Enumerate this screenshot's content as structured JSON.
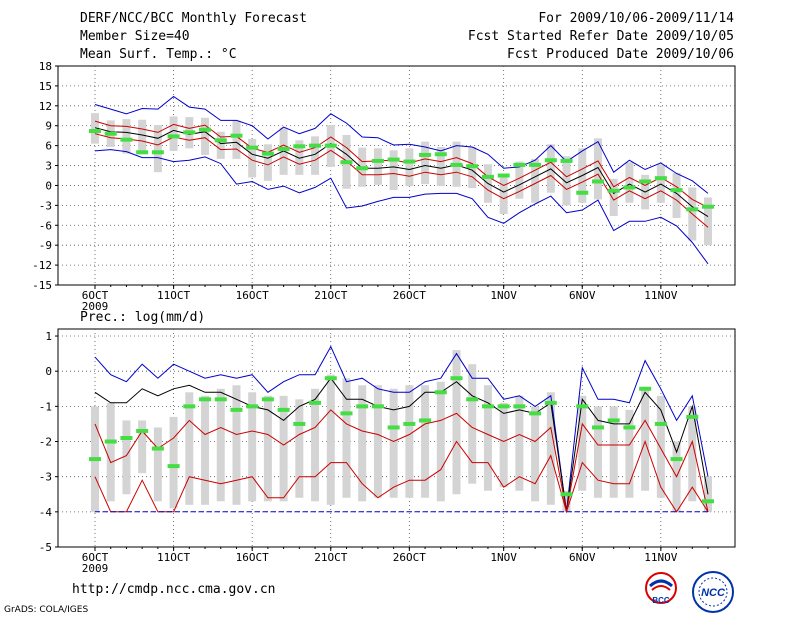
{
  "header": {
    "title": "DERF/NCC/BCC Monthly Forecast",
    "member_size": "Member Size=40",
    "variable": "Mean Surf. Temp.: °C",
    "period": "For 2009/10/06-2009/11/14",
    "fcst_started": "Fcst Started Refer Date 2009/10/05",
    "fcst_produced": "Fcst Produced Date 2009/10/06"
  },
  "footer": {
    "url": "http://cmdp.ncc.cma.gov.cn",
    "grads": "GrADS: COLA/IGES",
    "logo_bcc": "BCC",
    "logo_ncc": "NCC"
  },
  "colors": {
    "max": "#0000cc",
    "mean": "#000000",
    "spread": "#cc0000",
    "box": "#d4d4d4",
    "obs": "#44dd44"
  },
  "chart_data": [
    {
      "type": "line",
      "title": "Mean Surf. Temp.: °C",
      "x": [
        1,
        2,
        3,
        4,
        5,
        6,
        7,
        8,
        9,
        10,
        11,
        12,
        13,
        14,
        15,
        16,
        17,
        18,
        19,
        20,
        21,
        22,
        23,
        24,
        25,
        26,
        27,
        28,
        29,
        30,
        31,
        32,
        33,
        34,
        35,
        36,
        37,
        38,
        39,
        40
      ],
      "xtick_labels": [
        "6OCT",
        "11OCT",
        "16OCT",
        "21OCT",
        "26OCT",
        "1NOV",
        "6NOV",
        "11NOV"
      ],
      "xtick_positions": [
        1,
        6,
        11,
        16,
        21,
        27,
        32,
        37
      ],
      "x_year": "2009",
      "ylim": [
        -15,
        18
      ],
      "yticks": [
        -15,
        -12,
        -9,
        -6,
        -3,
        0,
        3,
        6,
        9,
        12,
        15,
        18
      ],
      "series": [
        {
          "name": "max",
          "values": [
            12.2,
            11.5,
            10.8,
            11.6,
            11.5,
            13.4,
            11.8,
            11.5,
            9.8,
            9.8,
            9.0,
            7.0,
            8.8,
            7.8,
            8.6,
            10.8,
            9.4,
            7.3,
            7.2,
            6.1,
            6.2,
            5.8,
            5.2,
            6.0,
            5.8,
            4.7,
            2.6,
            2.8,
            3.8,
            6.0,
            3.6,
            5.2,
            6.6,
            2.0,
            3.8,
            2.4,
            3.4,
            1.8,
            0.7,
            -1.2
          ]
        },
        {
          "name": "upper",
          "values": [
            9.7,
            9.0,
            8.9,
            8.5,
            8.0,
            9.2,
            8.6,
            9.1,
            7.3,
            7.4,
            5.6,
            5.0,
            6.1,
            5.0,
            5.7,
            7.3,
            5.7,
            3.6,
            3.7,
            3.8,
            3.4,
            4.0,
            3.6,
            4.2,
            3.3,
            1.3,
            0.0,
            1.1,
            2.3,
            3.5,
            1.3,
            2.5,
            3.7,
            -0.2,
            1.2,
            0.0,
            1.2,
            -0.2,
            -2.1,
            -3.3
          ]
        },
        {
          "name": "mean",
          "values": [
            8.7,
            8.1,
            8.0,
            7.6,
            7.1,
            8.3,
            7.7,
            8.1,
            6.3,
            6.5,
            4.7,
            4.1,
            5.2,
            4.1,
            4.7,
            6.3,
            4.7,
            2.6,
            2.6,
            2.8,
            2.4,
            3.0,
            2.6,
            3.1,
            2.3,
            0.3,
            -1.0,
            0.1,
            1.3,
            2.5,
            0.4,
            1.5,
            2.7,
            -1.2,
            0.2,
            -1.0,
            0.2,
            -1.2,
            -3.2,
            -4.7
          ]
        },
        {
          "name": "lower",
          "values": [
            7.8,
            7.2,
            7.0,
            6.7,
            6.1,
            7.3,
            6.8,
            7.2,
            5.4,
            5.5,
            3.8,
            3.1,
            4.3,
            3.2,
            3.8,
            5.3,
            3.7,
            1.6,
            1.6,
            1.8,
            1.4,
            2.0,
            1.6,
            2.0,
            1.3,
            -0.7,
            -2.0,
            -0.9,
            0.3,
            1.5,
            -0.6,
            0.5,
            1.7,
            -2.2,
            -0.8,
            -2.0,
            -0.8,
            -2.2,
            -4.3,
            -6.3
          ]
        },
        {
          "name": "min",
          "values": [
            5.2,
            5.4,
            5.1,
            4.2,
            4.2,
            3.6,
            3.8,
            4.3,
            3.3,
            0.2,
            0.6,
            -0.6,
            -0.1,
            -1.1,
            -0.3,
            1.1,
            -3.4,
            -3.1,
            -2.4,
            -1.8,
            -1.8,
            -1.3,
            -1.2,
            -1.2,
            -2.0,
            -4.8,
            -5.7,
            -4.1,
            -2.8,
            -1.6,
            -4.1,
            -3.7,
            -2.2,
            -6.8,
            -5.4,
            -5.4,
            -4.8,
            -6.1,
            -8.6,
            -11.8
          ]
        },
        {
          "name": "obs",
          "values": [
            8.2,
            7.8,
            6.9,
            5.0,
            5.0,
            7.4,
            8.0,
            8.4,
            6.8,
            7.5,
            5.7,
            4.8,
            5.5,
            5.9,
            6.0,
            6.0,
            3.5,
            2.6,
            3.7,
            3.9,
            3.6,
            4.6,
            4.7,
            3.1,
            2.9,
            1.3,
            1.5,
            3.1,
            3.1,
            3.8,
            3.7,
            -1.1,
            0.6,
            -0.8,
            -0.3,
            0.6,
            1.1,
            -0.7,
            -3.6,
            -3.2
          ]
        }
      ],
      "box_high": [
        10.9,
        9.8,
        10.0,
        9.9,
        9.1,
        10.4,
        10.3,
        10.2,
        8.1,
        9.8,
        7.0,
        6.2,
        8.7,
        6.8,
        7.4,
        9.1,
        7.6,
        5.7,
        5.6,
        5.3,
        5.6,
        6.6,
        5.8,
        6.6,
        5.8,
        3.2,
        1.6,
        3.6,
        4.0,
        6.2,
        4.4,
        5.6,
        7.1,
        1.0,
        3.5,
        1.6,
        3.2,
        1.9,
        -0.3,
        -1.8
      ],
      "box_low": [
        6.3,
        5.8,
        4.8,
        4.7,
        2.0,
        5.2,
        5.6,
        4.6,
        4.0,
        4.0,
        1.2,
        0.7,
        1.6,
        1.6,
        1.6,
        2.8,
        -0.5,
        -0.2,
        0.1,
        -0.7,
        -0.1,
        0.2,
        -0.1,
        -0.2,
        -0.4,
        -2.6,
        -4.3,
        -2.0,
        -2.6,
        -1.1,
        -3.0,
        -2.6,
        -2.1,
        -4.6,
        -2.6,
        -3.6,
        -2.6,
        -4.9,
        -8.3,
        -9.0
      ]
    },
    {
      "type": "line",
      "title": "Prec.: log(mm/d)",
      "x": [
        1,
        2,
        3,
        4,
        5,
        6,
        7,
        8,
        9,
        10,
        11,
        12,
        13,
        14,
        15,
        16,
        17,
        18,
        19,
        20,
        21,
        22,
        23,
        24,
        25,
        26,
        27,
        28,
        29,
        30,
        31,
        32,
        33,
        34,
        35,
        36,
        37,
        38,
        39,
        40
      ],
      "xtick_labels": [
        "6OCT",
        "11OCT",
        "16OCT",
        "21OCT",
        "26OCT",
        "1NOV",
        "6NOV",
        "11NOV"
      ],
      "xtick_positions": [
        1,
        6,
        11,
        16,
        21,
        27,
        32,
        37
      ],
      "x_year": "2009",
      "ylim": [
        -5,
        1.2
      ],
      "yticks": [
        -5,
        -4,
        -3,
        -2,
        -1,
        0,
        1
      ],
      "series": [
        {
          "name": "max",
          "values": [
            0.4,
            -0.1,
            -0.3,
            0.2,
            -0.2,
            0.2,
            0.0,
            -0.2,
            -0.1,
            -0.2,
            -0.1,
            -0.6,
            -0.3,
            -0.1,
            -0.1,
            0.7,
            -0.3,
            -0.2,
            -0.5,
            -0.6,
            -0.6,
            -0.3,
            -0.2,
            0.5,
            -0.2,
            -0.2,
            -0.8,
            -0.7,
            -1.0,
            -0.7,
            -4.0,
            0.1,
            -0.8,
            -0.8,
            -0.9,
            0.3,
            -0.5,
            -1.4,
            -0.7,
            -3.0
          ]
        },
        {
          "name": "mean",
          "values": [
            -0.6,
            -0.9,
            -0.9,
            -0.5,
            -0.7,
            -0.5,
            -0.4,
            -0.6,
            -0.6,
            -0.8,
            -1.0,
            -1.1,
            -1.4,
            -1.0,
            -0.8,
            -0.2,
            -0.8,
            -0.8,
            -1.0,
            -1.1,
            -1.0,
            -0.6,
            -0.6,
            -0.3,
            -0.7,
            -0.9,
            -1.2,
            -1.1,
            -1.2,
            -0.9,
            -4.0,
            -0.8,
            -1.4,
            -1.5,
            -1.5,
            -0.6,
            -1.1,
            -2.3,
            -1.0,
            -3.5
          ]
        },
        {
          "name": "upper",
          "values": [
            -1.5,
            -2.6,
            -2.4,
            -1.7,
            -2.2,
            -1.9,
            -1.4,
            -1.8,
            -1.6,
            -1.8,
            -1.7,
            -1.8,
            -2.1,
            -1.8,
            -1.6,
            -1.1,
            -1.5,
            -1.7,
            -1.8,
            -2.0,
            -1.8,
            -1.5,
            -1.4,
            -1.2,
            -1.6,
            -1.8,
            -2.0,
            -1.8,
            -2.0,
            -1.6,
            -4.0,
            -1.5,
            -2.1,
            -2.1,
            -2.1,
            -1.4,
            -2.2,
            -3.0,
            -2.0,
            -4.0
          ]
        },
        {
          "name": "lower",
          "values": [
            -3.0,
            -4.0,
            -4.0,
            -3.1,
            -4.0,
            -4.0,
            -3.0,
            -3.1,
            -3.2,
            -3.1,
            -3.0,
            -3.6,
            -3.6,
            -3.0,
            -3.0,
            -2.6,
            -2.6,
            -3.2,
            -3.6,
            -3.3,
            -3.1,
            -3.1,
            -2.8,
            -2.0,
            -2.6,
            -2.6,
            -3.3,
            -3.0,
            -3.2,
            -2.4,
            -4.0,
            -2.6,
            -3.1,
            -3.2,
            -3.2,
            -2.0,
            -3.3,
            -4.0,
            -3.3,
            -4.0
          ]
        },
        {
          "name": "min",
          "values": [
            -4.0,
            -4.0,
            -4.0,
            -4.0,
            -4.0,
            -4.0,
            -4.0,
            -4.0,
            -4.0,
            -4.0,
            -4.0,
            -4.0,
            -4.0,
            -4.0,
            -4.0,
            -4.0,
            -4.0,
            -4.0,
            -4.0,
            -4.0,
            -4.0,
            -4.0,
            -4.0,
            -4.0,
            -4.0,
            -4.0,
            -4.0,
            -4.0,
            -4.0,
            -4.0,
            -4.0,
            -4.0,
            -4.0,
            -4.0,
            -4.0,
            -4.0,
            -4.0,
            -4.0,
            -4.0,
            -4.0
          ]
        },
        {
          "name": "obs",
          "values": [
            -2.5,
            -2.0,
            -1.9,
            -1.7,
            -2.2,
            -2.7,
            -1.0,
            -0.8,
            -0.8,
            -1.1,
            -1.0,
            -0.8,
            -1.1,
            -1.5,
            -0.9,
            -0.2,
            -1.2,
            -1.0,
            -1.0,
            -1.6,
            -1.5,
            -1.4,
            -0.6,
            -0.2,
            -0.8,
            -1.0,
            -1.0,
            -1.0,
            -1.2,
            -0.9,
            -3.5,
            -1.0,
            -1.6,
            -1.4,
            -1.6,
            -0.5,
            -1.5,
            -2.5,
            -1.3,
            -3.7
          ]
        }
      ],
      "box_high": [
        -1.0,
        -0.9,
        -1.4,
        -1.4,
        -1.6,
        -1.3,
        -0.6,
        -0.7,
        -0.5,
        -0.4,
        -0.6,
        -0.7,
        -0.7,
        -0.8,
        -0.5,
        -0.1,
        -0.2,
        -0.4,
        -0.4,
        -0.5,
        -0.4,
        -0.4,
        -0.3,
        0.6,
        0.2,
        -0.4,
        -0.9,
        -0.7,
        -1.0,
        -0.6,
        -3.4,
        -0.7,
        -1.0,
        -1.0,
        -1.1,
        -0.5,
        -0.7,
        -2.0,
        -1.0,
        -3.0
      ],
      "box_low": [
        -4.0,
        -3.7,
        -3.5,
        -2.9,
        -3.7,
        -3.9,
        -3.8,
        -3.8,
        -3.7,
        -3.8,
        -3.7,
        -3.7,
        -3.7,
        -3.6,
        -3.7,
        -3.8,
        -3.6,
        -3.7,
        -3.6,
        -3.6,
        -3.6,
        -3.6,
        -3.7,
        -3.5,
        -3.2,
        -3.4,
        -3.3,
        -3.4,
        -3.7,
        -3.8,
        -4.0,
        -3.4,
        -3.6,
        -3.6,
        -3.6,
        -3.4,
        -3.6,
        -4.0,
        -3.7,
        -4.0
      ]
    }
  ]
}
